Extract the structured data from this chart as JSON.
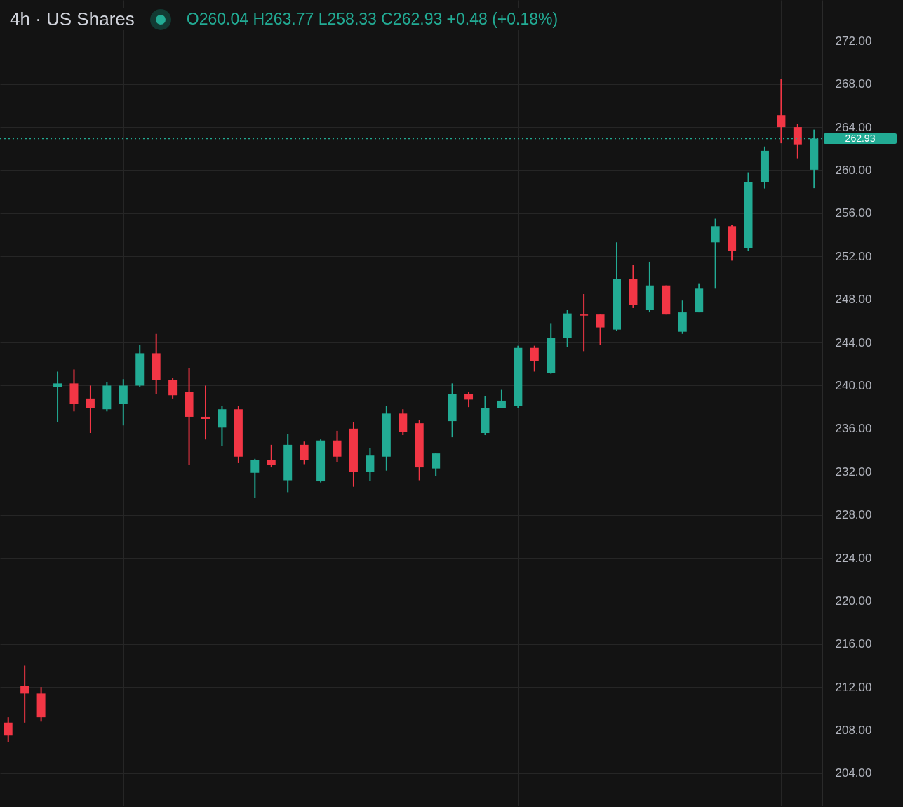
{
  "chart_data": {
    "type": "candlestick",
    "title": "4h · US Shares",
    "annotations": [
      "O260.04 H263.77 L258.33 C262.93 +0.48 (+0.18%)"
    ],
    "categories": [
      null,
      null,
      null,
      null,
      null,
      null,
      null,
      null,
      null,
      null,
      null,
      null,
      null,
      null,
      null,
      null,
      null,
      null,
      null,
      null,
      null,
      null,
      null,
      null,
      null,
      null,
      null,
      null,
      null,
      null,
      null,
      null,
      null,
      null,
      null,
      null,
      null,
      null,
      null,
      null,
      null,
      null,
      null,
      null,
      null,
      null,
      null,
      null,
      null,
      null
    ],
    "ohlc": [
      [
        208.7,
        209.2,
        206.9,
        207.5
      ],
      [
        212.1,
        214.0,
        208.7,
        211.4
      ],
      [
        211.4,
        212.0,
        208.8,
        209.2
      ],
      [
        239.9,
        241.3,
        236.6,
        240.2
      ],
      [
        240.2,
        241.5,
        237.6,
        238.3
      ],
      [
        238.8,
        240.0,
        235.6,
        237.9
      ],
      [
        237.8,
        240.3,
        237.6,
        240.0
      ],
      [
        238.3,
        240.6,
        236.3,
        240.0
      ],
      [
        240.0,
        243.8,
        239.9,
        243.0
      ],
      [
        243.0,
        244.8,
        239.2,
        240.5
      ],
      [
        240.5,
        240.7,
        238.8,
        239.1
      ],
      [
        239.4,
        241.6,
        232.6,
        237.1
      ],
      [
        237.1,
        240.0,
        235.0,
        236.9
      ],
      [
        236.1,
        238.1,
        234.4,
        237.8
      ],
      [
        237.8,
        238.1,
        232.8,
        233.4
      ],
      [
        231.9,
        233.2,
        229.6,
        233.1
      ],
      [
        233.1,
        234.5,
        232.4,
        232.6
      ],
      [
        231.2,
        235.5,
        230.1,
        234.5
      ],
      [
        234.5,
        234.8,
        232.7,
        233.1
      ],
      [
        231.1,
        235.0,
        231.0,
        234.9
      ],
      [
        234.9,
        235.8,
        232.9,
        233.4
      ],
      [
        236.0,
        236.6,
        230.6,
        232.0
      ],
      [
        232.0,
        234.2,
        231.1,
        233.5
      ],
      [
        233.4,
        238.1,
        232.1,
        237.4
      ],
      [
        237.4,
        237.8,
        235.4,
        235.7
      ],
      [
        236.5,
        236.8,
        231.2,
        232.4
      ],
      [
        232.3,
        233.7,
        231.6,
        233.7
      ],
      [
        236.7,
        240.2,
        235.2,
        239.2
      ],
      [
        239.2,
        239.4,
        238.0,
        238.7
      ],
      [
        235.6,
        239.0,
        235.4,
        237.9
      ],
      [
        237.9,
        239.6,
        237.9,
        238.6
      ],
      [
        238.1,
        243.7,
        237.9,
        243.5
      ],
      [
        243.5,
        243.7,
        241.3,
        242.3
      ],
      [
        241.2,
        245.8,
        241.1,
        244.4
      ],
      [
        244.4,
        247.0,
        243.6,
        246.7
      ],
      [
        246.6,
        248.5,
        243.2,
        246.5
      ],
      [
        246.6,
        246.6,
        243.8,
        245.4
      ],
      [
        245.2,
        253.3,
        245.1,
        249.9
      ],
      [
        249.9,
        251.2,
        247.2,
        247.5
      ],
      [
        247.0,
        251.5,
        246.8,
        249.3
      ],
      [
        249.3,
        249.3,
        246.6,
        246.6
      ],
      [
        245.0,
        247.9,
        244.8,
        246.8
      ],
      [
        246.8,
        249.5,
        246.8,
        249.0
      ],
      [
        253.3,
        255.5,
        249.0,
        254.8
      ],
      [
        254.8,
        254.9,
        251.6,
        252.5
      ],
      [
        252.8,
        259.8,
        252.5,
        258.9
      ],
      [
        258.9,
        262.2,
        258.3,
        261.8
      ],
      [
        265.1,
        268.5,
        262.5,
        264.0
      ],
      [
        264.0,
        264.3,
        261.1,
        262.4
      ],
      [
        260.04,
        263.77,
        258.33,
        262.93
      ]
    ],
    "colors": [
      "#f23645",
      "#f23645",
      "#f23645",
      "#22ab94",
      "#f23645",
      "#f23645",
      "#22ab94",
      "#22ab94",
      "#22ab94",
      "#f23645",
      "#f23645",
      "#f23645",
      "#f23645",
      "#22ab94",
      "#f23645",
      "#22ab94",
      "#f23645",
      "#22ab94",
      "#f23645",
      "#22ab94",
      "#f23645",
      "#f23645",
      "#22ab94",
      "#22ab94",
      "#f23645",
      "#f23645",
      "#22ab94",
      "#22ab94",
      "#f23645",
      "#22ab94",
      "#22ab94",
      "#22ab94",
      "#f23645",
      "#22ab94",
      "#22ab94",
      "#f23645",
      "#f23645",
      "#22ab94",
      "#f23645",
      "#22ab94",
      "#f23645",
      "#22ab94",
      "#22ab94",
      "#22ab94",
      "#f23645",
      "#22ab94",
      "#22ab94",
      "#f23645",
      "#f23645",
      "#22ab94"
    ],
    "ylim": [
      201.0,
      275.8
    ],
    "yticks": [
      {
        "value": 204,
        "label": "204.00"
      },
      {
        "value": 208,
        "label": "208.00"
      },
      {
        "value": 212,
        "label": "212.00"
      },
      {
        "value": 216,
        "label": "216.00"
      },
      {
        "value": 220,
        "label": "220.00"
      },
      {
        "value": 224,
        "label": "224.00"
      },
      {
        "value": 228,
        "label": "228.00"
      },
      {
        "value": 232,
        "label": "232.00"
      },
      {
        "value": 236,
        "label": "236.00"
      },
      {
        "value": 240,
        "label": "240.00"
      },
      {
        "value": 244,
        "label": "244.00"
      },
      {
        "value": 248,
        "label": "248.00"
      },
      {
        "value": 252,
        "label": "252.00"
      },
      {
        "value": 256,
        "label": "256.00"
      },
      {
        "value": 260,
        "label": "260.00"
      },
      {
        "value": 264,
        "label": "264.00"
      },
      {
        "value": 268,
        "label": "268.00"
      },
      {
        "value": 272,
        "label": "272.00"
      }
    ],
    "grid": true,
    "tick_labels": "y",
    "ref_lines": [
      {
        "axis": "y",
        "value": 262.93,
        "label": "262.93",
        "color": "#22ab94",
        "line_style": "dotted"
      }
    ]
  }
}
